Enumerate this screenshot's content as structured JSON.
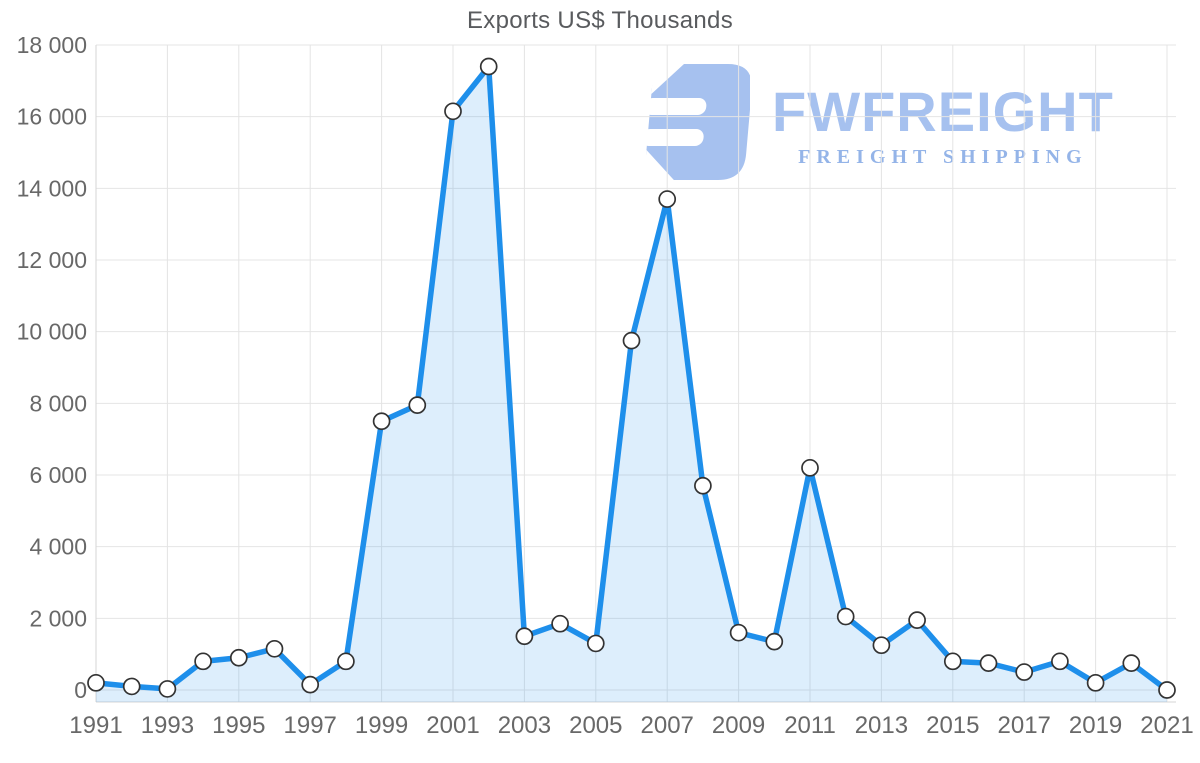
{
  "title": "Exports US$ Thousands",
  "watermark": {
    "brand": "FWFREIGHT",
    "tagline": "FREIGHT SHIPPING",
    "brand_color": "#a6c1ef",
    "tagline_color": "#94b4e8"
  },
  "chart_data": {
    "type": "area",
    "title": "Exports US$ Thousands",
    "x": [
      1991,
      1992,
      1993,
      1994,
      1995,
      1996,
      1997,
      1998,
      1999,
      2000,
      2001,
      2002,
      2003,
      2004,
      2005,
      2006,
      2007,
      2008,
      2009,
      2010,
      2011,
      2012,
      2013,
      2014,
      2015,
      2016,
      2017,
      2018,
      2019,
      2020,
      2021
    ],
    "series": [
      {
        "name": "Exports US$ Thousands",
        "values": [
          200,
          100,
          30,
          800,
          900,
          1150,
          150,
          800,
          7500,
          7950,
          16150,
          17400,
          1500,
          1850,
          1300,
          9750,
          13700,
          5700,
          1600,
          1350,
          6200,
          2050,
          1250,
          1950,
          800,
          750,
          500,
          800,
          200,
          750,
          0
        ]
      }
    ],
    "xlabel": "",
    "ylabel": "",
    "ylim": [
      0,
      18000
    ],
    "ytick_step": 2000,
    "yticklabels": [
      "0",
      "2 000",
      "4 000",
      "6 000",
      "8 000",
      "10 000",
      "12 000",
      "14 000",
      "16 000",
      "18 000"
    ],
    "xticklabels": [
      "1991",
      "1993",
      "1995",
      "1997",
      "1999",
      "2001",
      "2003",
      "2005",
      "2007",
      "2009",
      "2011",
      "2013",
      "2015",
      "2017",
      "2019",
      "2021"
    ],
    "grid": true,
    "legend": "none",
    "line_color": "#1e8feb",
    "fill_color": "rgba(30,144,235,0.15)",
    "marker_fill": "#ffffff",
    "marker_stroke": "#333333",
    "grid_color": "#e4e4e4",
    "axis_color": "#d6d6d6",
    "label_color": "#686868",
    "title_color": "#595b5e"
  }
}
